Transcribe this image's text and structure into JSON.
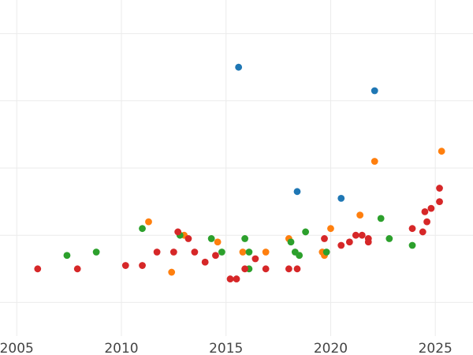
{
  "chart_data": {
    "type": "scatter",
    "title": "",
    "xlabel": "",
    "ylabel": "",
    "xlim": [
      2004.2,
      2026.8
    ],
    "ylim": [
      0,
      1
    ],
    "grid": true,
    "x_ticks": [
      2005,
      2010,
      2015,
      2020,
      2025
    ],
    "x_tick_labels": [
      "2005",
      "2010",
      "2015",
      "2020",
      "2025"
    ],
    "y_ticks": [
      0.1,
      0.3,
      0.5,
      0.7,
      0.9
    ],
    "y_tick_labels": [],
    "series": [
      {
        "color": "#1f77b4",
        "points": [
          {
            "x": 2015.6,
            "y": 0.8
          },
          {
            "x": 2022.1,
            "y": 0.73
          },
          {
            "x": 2018.4,
            "y": 0.43
          },
          {
            "x": 2020.5,
            "y": 0.41
          }
        ]
      },
      {
        "color": "#ff7f0e",
        "points": [
          {
            "x": 2011.3,
            "y": 0.34
          },
          {
            "x": 2012.4,
            "y": 0.19
          },
          {
            "x": 2013.0,
            "y": 0.3
          },
          {
            "x": 2014.6,
            "y": 0.28
          },
          {
            "x": 2015.8,
            "y": 0.25
          },
          {
            "x": 2016.9,
            "y": 0.25
          },
          {
            "x": 2018.0,
            "y": 0.29
          },
          {
            "x": 2019.6,
            "y": 0.25
          },
          {
            "x": 2019.7,
            "y": 0.24
          },
          {
            "x": 2020.0,
            "y": 0.32
          },
          {
            "x": 2021.4,
            "y": 0.36
          },
          {
            "x": 2022.1,
            "y": 0.52
          },
          {
            "x": 2025.3,
            "y": 0.55
          }
        ]
      },
      {
        "color": "#2ca02c",
        "points": [
          {
            "x": 2007.4,
            "y": 0.24
          },
          {
            "x": 2008.8,
            "y": 0.25
          },
          {
            "x": 2011.0,
            "y": 0.32
          },
          {
            "x": 2012.8,
            "y": 0.3
          },
          {
            "x": 2014.3,
            "y": 0.29
          },
          {
            "x": 2014.8,
            "y": 0.25
          },
          {
            "x": 2015.9,
            "y": 0.29
          },
          {
            "x": 2016.1,
            "y": 0.25
          },
          {
            "x": 2016.1,
            "y": 0.2
          },
          {
            "x": 2018.1,
            "y": 0.28
          },
          {
            "x": 2018.3,
            "y": 0.25
          },
          {
            "x": 2018.5,
            "y": 0.24
          },
          {
            "x": 2018.8,
            "y": 0.31
          },
          {
            "x": 2019.8,
            "y": 0.25
          },
          {
            "x": 2022.4,
            "y": 0.35
          },
          {
            "x": 2022.8,
            "y": 0.29
          },
          {
            "x": 2023.9,
            "y": 0.27
          }
        ]
      },
      {
        "color": "#d62728",
        "points": [
          {
            "x": 2006.0,
            "y": 0.2
          },
          {
            "x": 2007.9,
            "y": 0.2
          },
          {
            "x": 2010.2,
            "y": 0.21
          },
          {
            "x": 2011.0,
            "y": 0.21
          },
          {
            "x": 2011.7,
            "y": 0.25
          },
          {
            "x": 2012.5,
            "y": 0.25
          },
          {
            "x": 2012.7,
            "y": 0.31
          },
          {
            "x": 2013.2,
            "y": 0.29
          },
          {
            "x": 2013.5,
            "y": 0.25
          },
          {
            "x": 2014.0,
            "y": 0.22
          },
          {
            "x": 2014.5,
            "y": 0.24
          },
          {
            "x": 2015.2,
            "y": 0.17
          },
          {
            "x": 2015.5,
            "y": 0.17
          },
          {
            "x": 2015.9,
            "y": 0.2
          },
          {
            "x": 2016.4,
            "y": 0.23
          },
          {
            "x": 2016.9,
            "y": 0.2
          },
          {
            "x": 2018.0,
            "y": 0.2
          },
          {
            "x": 2018.4,
            "y": 0.2
          },
          {
            "x": 2019.7,
            "y": 0.29
          },
          {
            "x": 2020.5,
            "y": 0.27
          },
          {
            "x": 2020.9,
            "y": 0.28
          },
          {
            "x": 2021.2,
            "y": 0.3
          },
          {
            "x": 2021.5,
            "y": 0.3
          },
          {
            "x": 2021.8,
            "y": 0.28
          },
          {
            "x": 2021.8,
            "y": 0.29
          },
          {
            "x": 2023.9,
            "y": 0.32
          },
          {
            "x": 2024.4,
            "y": 0.31
          },
          {
            "x": 2024.5,
            "y": 0.37
          },
          {
            "x": 2024.6,
            "y": 0.34
          },
          {
            "x": 2024.8,
            "y": 0.38
          },
          {
            "x": 2025.2,
            "y": 0.44
          },
          {
            "x": 2025.2,
            "y": 0.4
          }
        ]
      }
    ]
  }
}
